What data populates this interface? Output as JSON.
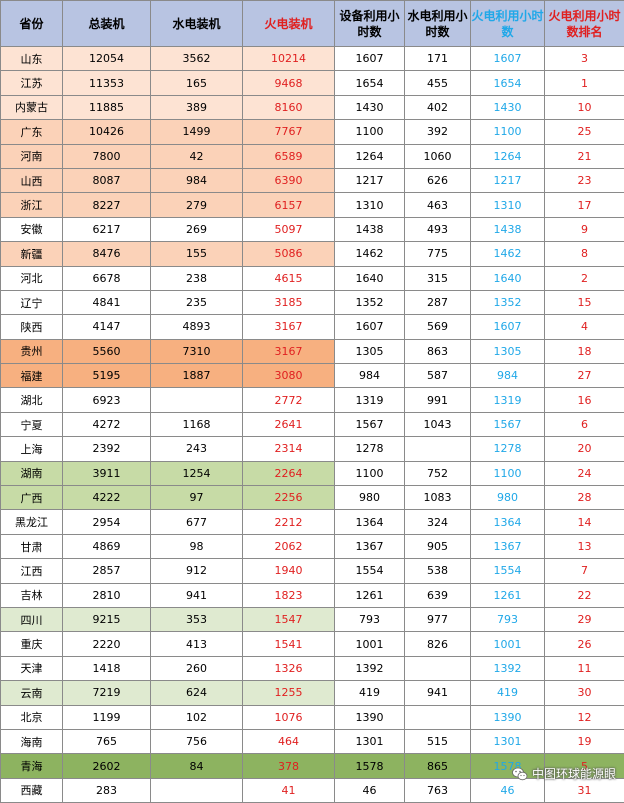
{
  "headers": {
    "province": "省份",
    "total": "总装机",
    "hydro": "水电装机",
    "thermal": "火电装机",
    "util": "设备利用小时数",
    "hydro_util": "水电利用小时数",
    "thermal_util": "火电利用小时数",
    "rank": "火电利用小时数排名"
  },
  "rows": [
    {
      "province": "山东",
      "total": "12054",
      "hydro": "3562",
      "thermal": "10214",
      "util": "1607",
      "hydro_util": "171",
      "thermal_util": "1607",
      "rank": "3",
      "color": "peach"
    },
    {
      "province": "江苏",
      "total": "11353",
      "hydro": "165",
      "thermal": "9468",
      "util": "1654",
      "hydro_util": "455",
      "thermal_util": "1654",
      "rank": "1",
      "color": "peach"
    },
    {
      "province": "内蒙古",
      "total": "11885",
      "hydro": "389",
      "thermal": "8160",
      "util": "1430",
      "hydro_util": "402",
      "thermal_util": "1430",
      "rank": "10",
      "color": "peach"
    },
    {
      "province": "广东",
      "total": "10426",
      "hydro": "1499",
      "thermal": "7767",
      "util": "1100",
      "hydro_util": "392",
      "thermal_util": "1100",
      "rank": "25",
      "color": "orange"
    },
    {
      "province": "河南",
      "total": "7800",
      "hydro": "42",
      "thermal": "6589",
      "util": "1264",
      "hydro_util": "1060",
      "thermal_util": "1264",
      "rank": "21",
      "color": "orange"
    },
    {
      "province": "山西",
      "total": "8087",
      "hydro": "984",
      "thermal": "6390",
      "util": "1217",
      "hydro_util": "626",
      "thermal_util": "1217",
      "rank": "23",
      "color": "orange"
    },
    {
      "province": "浙江",
      "total": "8227",
      "hydro": "279",
      "thermal": "6157",
      "util": "1310",
      "hydro_util": "463",
      "thermal_util": "1310",
      "rank": "17",
      "color": "orange"
    },
    {
      "province": "安徽",
      "total": "6217",
      "hydro": "269",
      "thermal": "5097",
      "util": "1438",
      "hydro_util": "493",
      "thermal_util": "1438",
      "rank": "9",
      "color": "none"
    },
    {
      "province": "新疆",
      "total": "8476",
      "hydro": "155",
      "thermal": "5086",
      "util": "1462",
      "hydro_util": "775",
      "thermal_util": "1462",
      "rank": "8",
      "color": "orange"
    },
    {
      "province": "河北",
      "total": "6678",
      "hydro": "238",
      "thermal": "4615",
      "util": "1640",
      "hydro_util": "315",
      "thermal_util": "1640",
      "rank": "2",
      "color": "none"
    },
    {
      "province": "辽宁",
      "total": "4841",
      "hydro": "235",
      "thermal": "3185",
      "util": "1352",
      "hydro_util": "287",
      "thermal_util": "1352",
      "rank": "15",
      "color": "none"
    },
    {
      "province": "陕西",
      "total": "4147",
      "hydro": "4893",
      "thermal": "3167",
      "util": "1607",
      "hydro_util": "569",
      "thermal_util": "1607",
      "rank": "4",
      "color": "none"
    },
    {
      "province": "贵州",
      "total": "5560",
      "hydro": "7310",
      "thermal": "3167",
      "util": "1305",
      "hydro_util": "863",
      "thermal_util": "1305",
      "rank": "18",
      "color": "dorange"
    },
    {
      "province": "福建",
      "total": "5195",
      "hydro": "1887",
      "thermal": "3080",
      "util": "984",
      "hydro_util": "587",
      "thermal_util": "984",
      "rank": "27",
      "color": "dorange"
    },
    {
      "province": "湖北",
      "total": "6923",
      "hydro": "",
      "thermal": "2772",
      "util": "1319",
      "hydro_util": "991",
      "thermal_util": "1319",
      "rank": "16",
      "color": "none"
    },
    {
      "province": "宁夏",
      "total": "4272",
      "hydro": "1168",
      "thermal": "2641",
      "util": "1567",
      "hydro_util": "1043",
      "thermal_util": "1567",
      "rank": "6",
      "color": "none"
    },
    {
      "province": "上海",
      "total": "2392",
      "hydro": "243",
      "thermal": "2314",
      "util": "1278",
      "hydro_util": "",
      "thermal_util": "1278",
      "rank": "20",
      "color": "none"
    },
    {
      "province": "湖南",
      "total": "3911",
      "hydro": "1254",
      "thermal": "2264",
      "util": "1100",
      "hydro_util": "752",
      "thermal_util": "1100",
      "rank": "24",
      "color": "green"
    },
    {
      "province": "广西",
      "total": "4222",
      "hydro": "97",
      "thermal": "2256",
      "util": "980",
      "hydro_util": "1083",
      "thermal_util": "980",
      "rank": "28",
      "color": "green"
    },
    {
      "province": "黑龙江",
      "total": "2954",
      "hydro": "677",
      "thermal": "2212",
      "util": "1364",
      "hydro_util": "324",
      "thermal_util": "1364",
      "rank": "14",
      "color": "none"
    },
    {
      "province": "甘肃",
      "total": "4869",
      "hydro": "98",
      "thermal": "2062",
      "util": "1367",
      "hydro_util": "905",
      "thermal_util": "1367",
      "rank": "13",
      "color": "none"
    },
    {
      "province": "江西",
      "total": "2857",
      "hydro": "912",
      "thermal": "1940",
      "util": "1554",
      "hydro_util": "538",
      "thermal_util": "1554",
      "rank": "7",
      "color": "none"
    },
    {
      "province": "吉林",
      "total": "2810",
      "hydro": "941",
      "thermal": "1823",
      "util": "1261",
      "hydro_util": "639",
      "thermal_util": "1261",
      "rank": "22",
      "color": "none"
    },
    {
      "province": "四川",
      "total": "9215",
      "hydro": "353",
      "thermal": "1547",
      "util": "793",
      "hydro_util": "977",
      "thermal_util": "793",
      "rank": "29",
      "color": "lgreen"
    },
    {
      "province": "重庆",
      "total": "2220",
      "hydro": "413",
      "thermal": "1541",
      "util": "1001",
      "hydro_util": "826",
      "thermal_util": "1001",
      "rank": "26",
      "color": "none"
    },
    {
      "province": "天津",
      "total": "1418",
      "hydro": "260",
      "thermal": "1326",
      "util": "1392",
      "hydro_util": "",
      "thermal_util": "1392",
      "rank": "11",
      "color": "none"
    },
    {
      "province": "云南",
      "total": "7219",
      "hydro": "624",
      "thermal": "1255",
      "util": "419",
      "hydro_util": "941",
      "thermal_util": "419",
      "rank": "30",
      "color": "lgreen"
    },
    {
      "province": "北京",
      "total": "1199",
      "hydro": "102",
      "thermal": "1076",
      "util": "1390",
      "hydro_util": "",
      "thermal_util": "1390",
      "rank": "12",
      "color": "none"
    },
    {
      "province": "海南",
      "total": "765",
      "hydro": "756",
      "thermal": "464",
      "util": "1301",
      "hydro_util": "515",
      "thermal_util": "1301",
      "rank": "19",
      "color": "none"
    },
    {
      "province": "青海",
      "total": "2602",
      "hydro": "84",
      "thermal": "378",
      "util": "1578",
      "hydro_util": "865",
      "thermal_util": "1578",
      "rank": "5",
      "color": "dgreen"
    },
    {
      "province": "西藏",
      "total": "283",
      "hydro": "",
      "thermal": "41",
      "util": "46",
      "hydro_util": "763",
      "thermal_util": "46",
      "rank": "31",
      "color": "none"
    }
  ],
  "watermark": {
    "text": "中图环球能源眼",
    "icon": "wechat-icon"
  }
}
